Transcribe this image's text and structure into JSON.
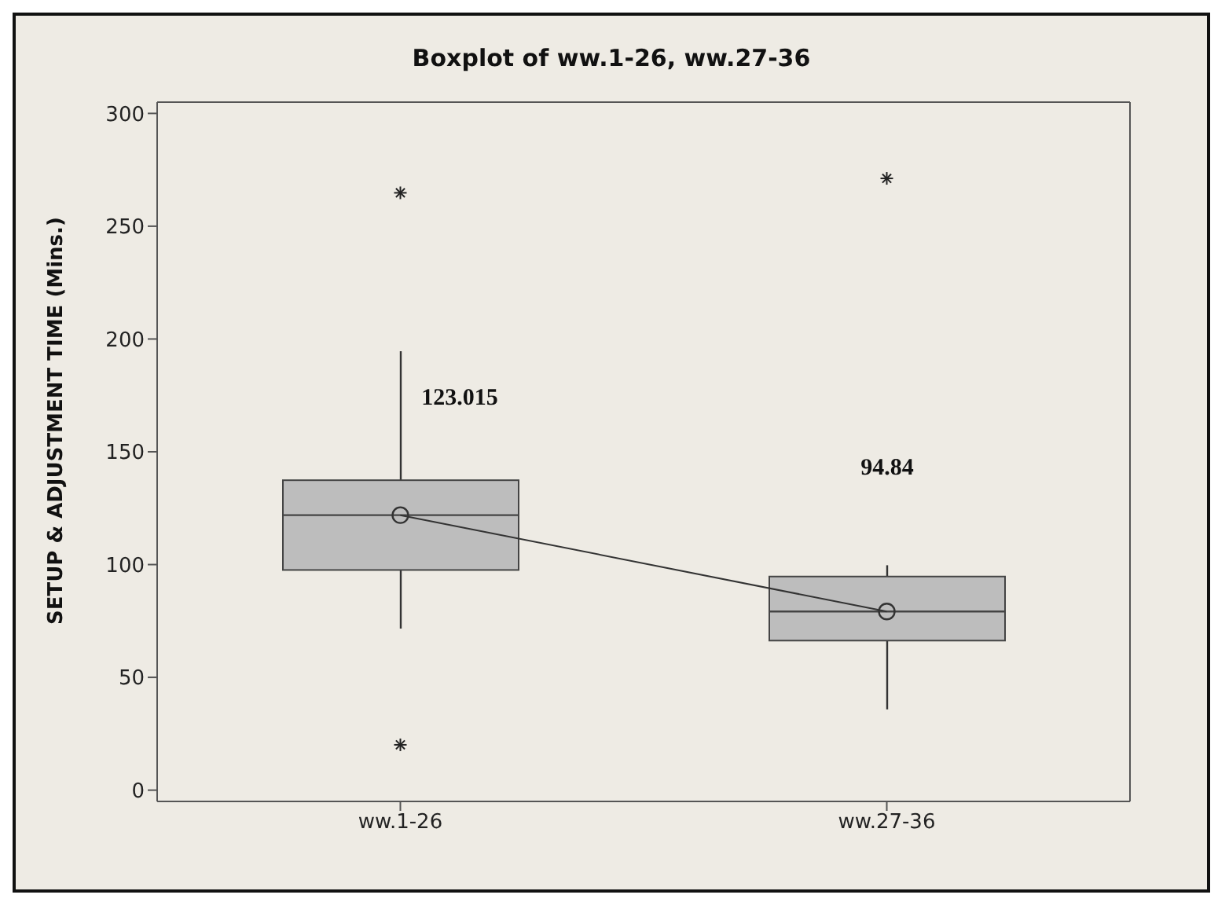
{
  "chart_data": {
    "type": "box",
    "title": "Boxplot of ww.1-26, ww.27-36",
    "ylabel": "SETUP & ADJUSTMENT TIME (Mins.)",
    "categories": [
      "ww.1-26",
      "ww.27-36"
    ],
    "color": "#bdbdbd",
    "boxes": [
      {
        "low": 71.6,
        "q1": 97.6,
        "median": 121.9,
        "q3": 137.4,
        "high": 194.6,
        "outliers": [
          264.8,
          20.1
        ]
      },
      {
        "low": 35.8,
        "q1": 66.3,
        "median": 79.2,
        "q3": 94.7,
        "high": 99.7,
        "outliers": [
          271.2
        ]
      }
    ],
    "series": [
      {
        "type": "line",
        "values": [
          121.9,
          79.2
        ],
        "color": "#333333",
        "marker": "circle"
      }
    ],
    "annotations": [
      "123.015",
      "94.84"
    ],
    "ylim": [
      -5,
      305
    ],
    "yticks": [
      0,
      50,
      100,
      150,
      200,
      250,
      300
    ],
    "grid": false,
    "legend": false
  }
}
